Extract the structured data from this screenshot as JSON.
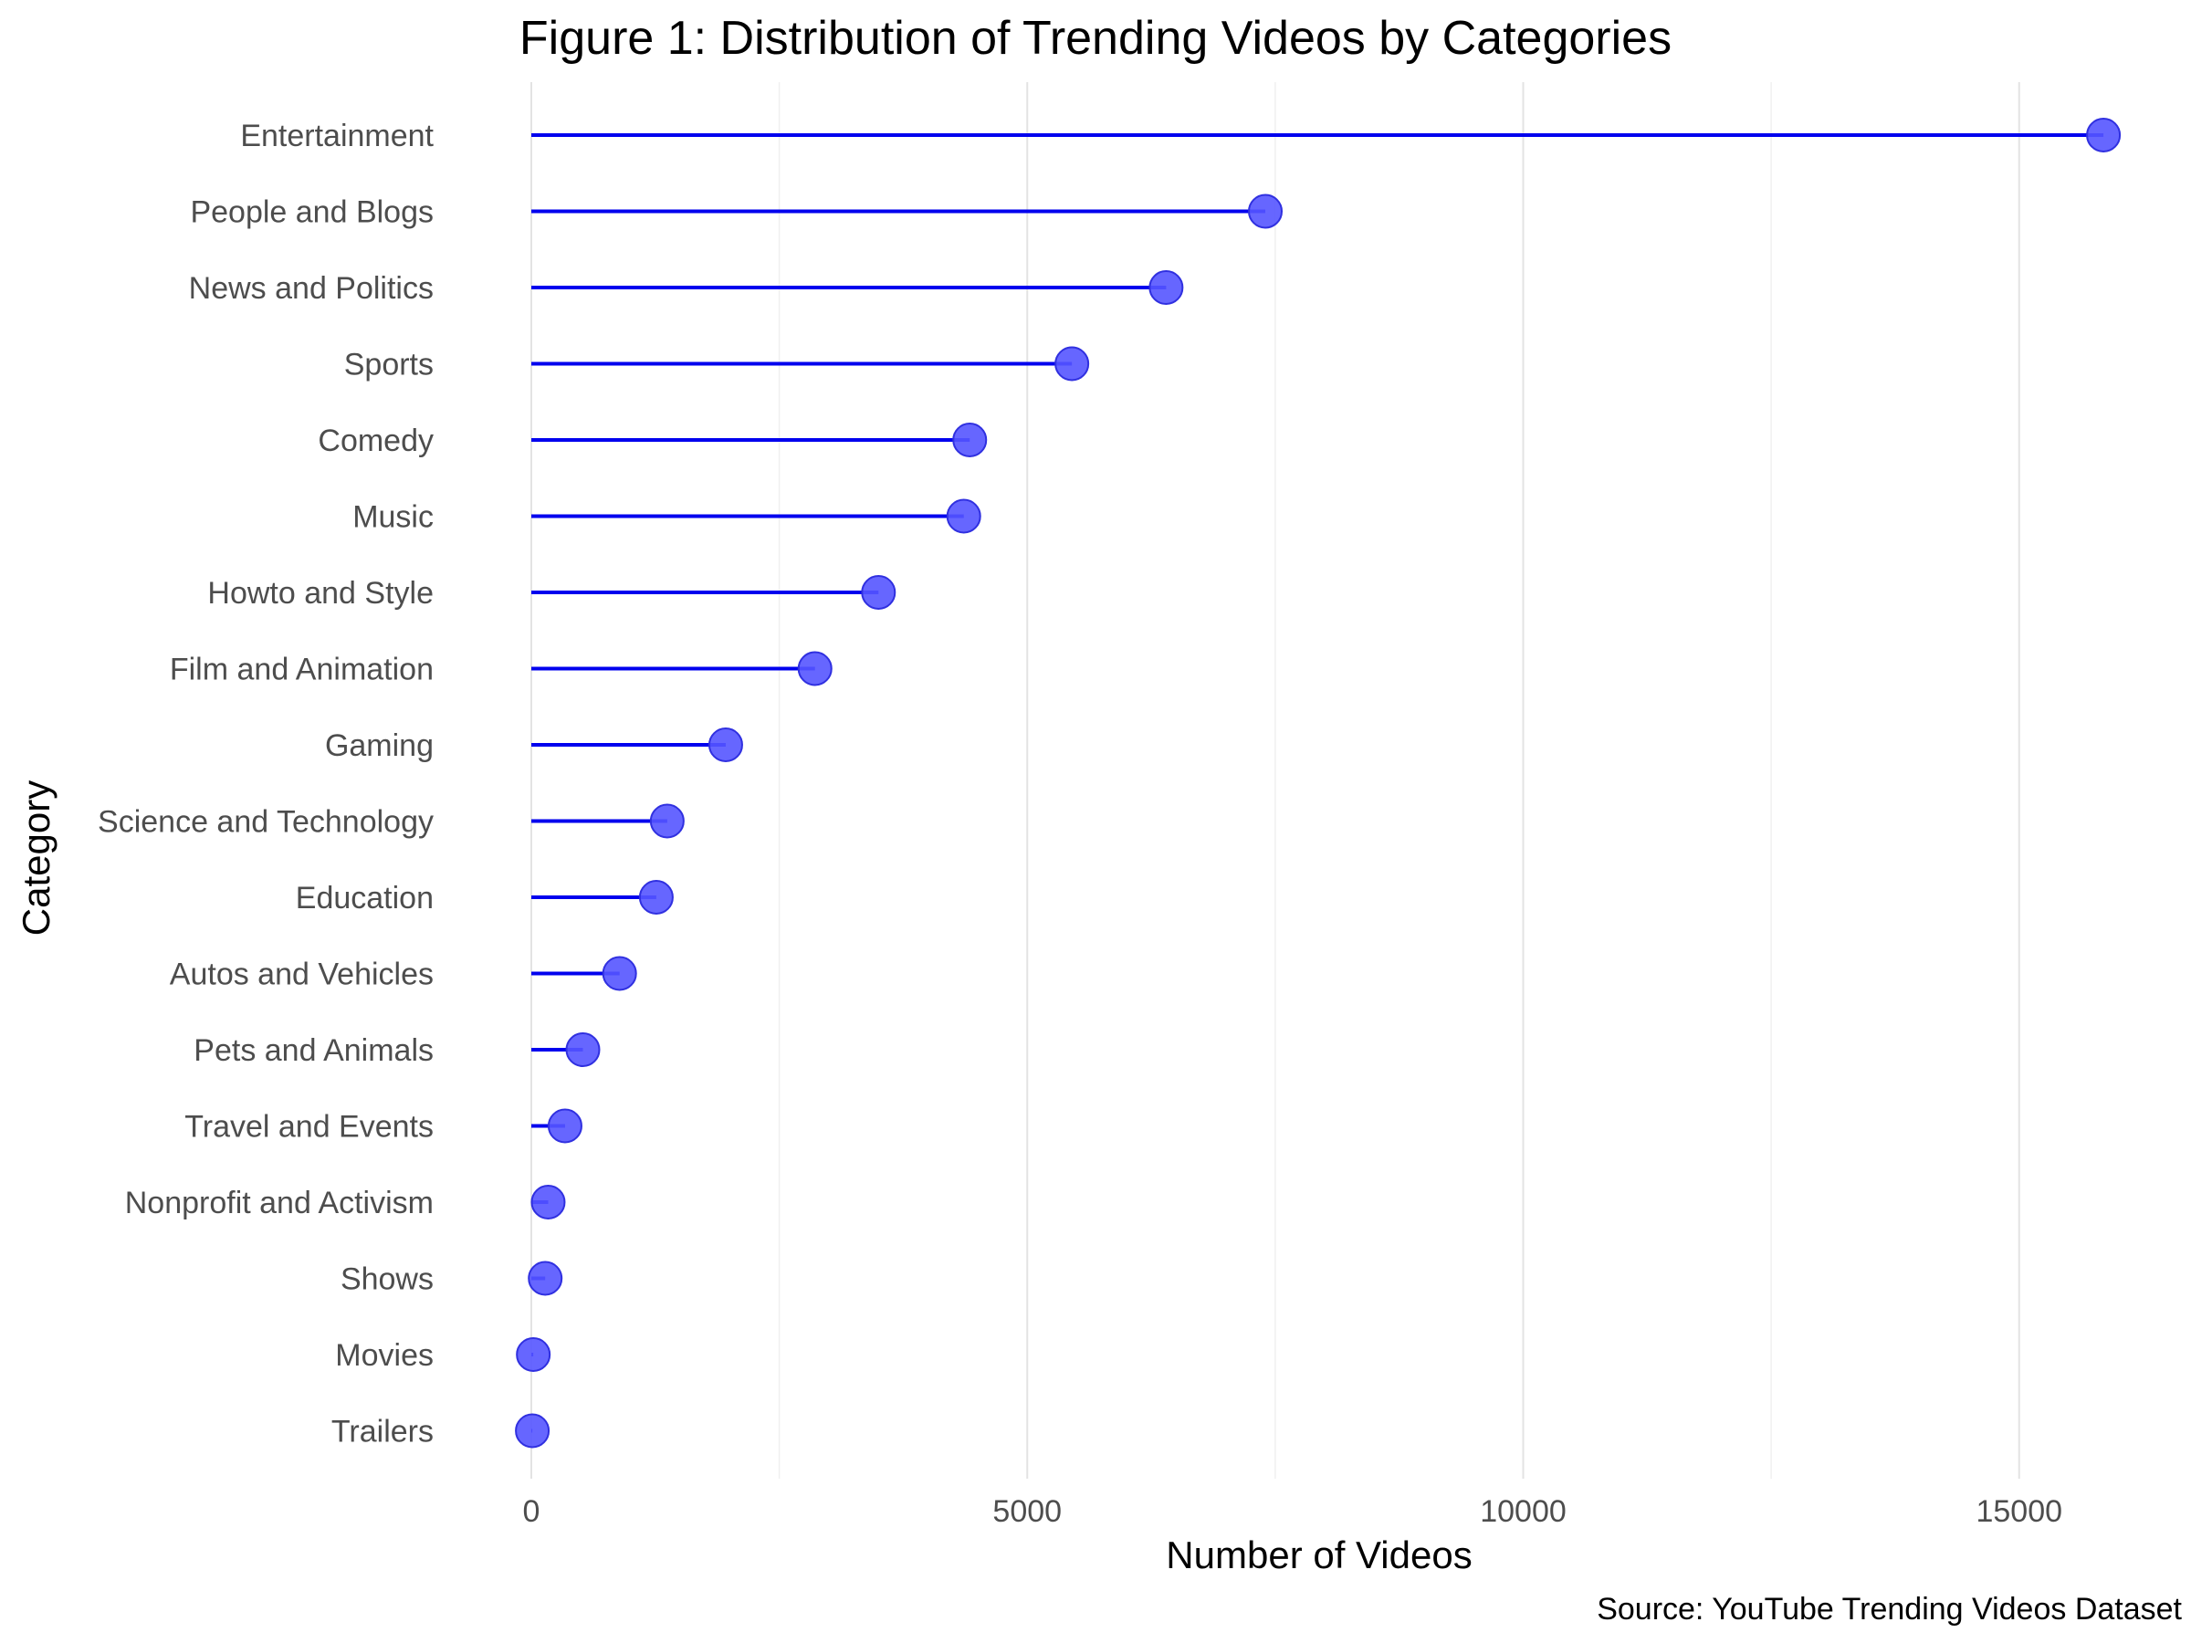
{
  "chart_data": {
    "type": "lollipop",
    "title": "Figure 1: Distribution of Trending Videos by Categories",
    "xlabel": "Number of Videos",
    "ylabel": "Category",
    "caption": "Source: YouTube Trending Videos Dataset",
    "xlim": [
      -650,
      16600
    ],
    "xticks": [
      0,
      5000,
      10000,
      15000
    ],
    "minor_gridlines": [
      2500,
      7500,
      12500
    ],
    "grid": true,
    "orientation": "horizontal",
    "colors": {
      "stem": "#0000ee",
      "point_fill": "#5555ff",
      "point_stroke": "#3030e0",
      "grid": "#e3e3e3",
      "tick_text": "#4d4d4d"
    },
    "categories": [
      "Entertainment",
      "People and Blogs",
      "News and Politics",
      "Sports",
      "Comedy",
      "Music",
      "Howto and Style",
      "Film and Animation",
      "Gaming",
      "Science and Technology",
      "Education",
      "Autos and Vehicles",
      "Pets and Animals",
      "Travel and Events",
      "Nonprofit and Activism",
      "Shows",
      "Movies",
      "Trailers"
    ],
    "values": [
      15850,
      7400,
      6400,
      5450,
      4420,
      4360,
      3500,
      2860,
      1960,
      1370,
      1260,
      890,
      520,
      340,
      170,
      140,
      20,
      10
    ]
  }
}
